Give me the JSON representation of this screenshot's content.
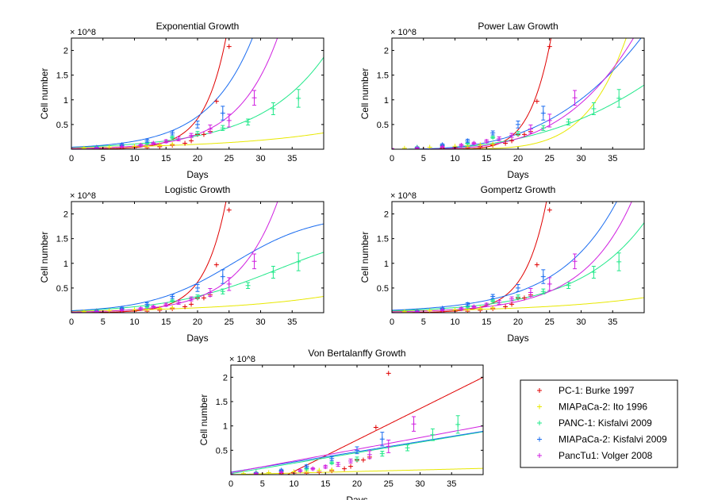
{
  "chart_data": [
    {
      "type": "line",
      "title": "Exponential Growth",
      "xlabel": "Days",
      "ylabel": "Cell number",
      "y_multiplier": "× 10^8",
      "xlim": [
        0,
        40
      ],
      "ylim": [
        0,
        2.25
      ],
      "xticks": [
        0,
        5,
        10,
        15,
        20,
        25,
        30,
        35
      ],
      "yticks": [
        0.5,
        1,
        1.5,
        2
      ],
      "fit_model": "exponential",
      "fits": [
        {
          "series": "PC-1: Burke 1997",
          "y0": 0.002,
          "k": 0.2867
        },
        {
          "series": "MIAPaCa-2: Ito 1996",
          "y0": 0.03,
          "k": 0.06
        },
        {
          "series": "PANC-1: Kisfalvi 2009",
          "y0": 0.04,
          "k": 0.096
        },
        {
          "series": "MIAPaCa-2: Kisfalvi 2009",
          "y0": 0.04,
          "k": 0.1404
        },
        {
          "series": "PancTu1: Volger 2008",
          "y0": 0.013,
          "k": 0.1578
        }
      ]
    },
    {
      "type": "line",
      "title": "Power Law Growth",
      "xlabel": "Days",
      "ylabel": "Cell number",
      "y_multiplier": "× 10^8",
      "xlim": [
        0,
        40
      ],
      "ylim": [
        0,
        2.25
      ],
      "xticks": [
        0,
        5,
        10,
        15,
        20,
        25,
        30,
        35
      ],
      "yticks": [
        0.5,
        1,
        1.5,
        2
      ],
      "fit_model": "power",
      "fits": [
        {
          "series": "PC-1: Burke 1997",
          "a": 2.1,
          "x0": 25,
          "p": 7.5
        },
        {
          "series": "MIAPaCa-2: Ito 1996",
          "a": 2.2,
          "x0": 37,
          "p": 6.0
        },
        {
          "series": "PANC-1: Kisfalvi 2009",
          "a": 1.3,
          "x0": 40,
          "p": 2.6
        },
        {
          "series": "MIAPaCa-2: Kisfalvi 2009",
          "a": 2.25,
          "x0": 39.5,
          "p": 2.9
        },
        {
          "series": "PancTu1: Volger 2008",
          "a": 2.25,
          "x0": 38.3,
          "p": 3.6
        }
      ]
    },
    {
      "type": "line",
      "title": "Logistic Growth",
      "xlabel": "Days",
      "ylabel": "Cell number",
      "y_multiplier": "× 10^8",
      "xlim": [
        0,
        40
      ],
      "ylim": [
        0,
        2.25
      ],
      "xticks": [
        0,
        5,
        10,
        15,
        20,
        25,
        30,
        35
      ],
      "yticks": [
        0.5,
        1,
        1.5,
        2
      ],
      "fit_model": "logistic",
      "fits": [
        {
          "series": "PC-1: Burke 1997",
          "K": 2000,
          "y0": 0.002,
          "r": 0.2867
        },
        {
          "series": "MIAPaCa-2: Ito 1996",
          "K": 100,
          "y0": 0.03,
          "r": 0.06
        },
        {
          "series": "PANC-1: Kisfalvi 2009",
          "K": 1.75,
          "y0": 0.04,
          "r": 0.115
        },
        {
          "series": "MIAPaCa-2: Kisfalvi 2009",
          "K": 2.0,
          "y0": 0.04,
          "r": 0.152
        },
        {
          "series": "PancTu1: Volger 2008",
          "K": 200,
          "y0": 0.013,
          "r": 0.158
        }
      ]
    },
    {
      "type": "line",
      "title": "Gompertz Growth",
      "xlabel": "Days",
      "ylabel": "Cell number",
      "y_multiplier": "× 10^8",
      "xlim": [
        0,
        40
      ],
      "ylim": [
        0,
        2.25
      ],
      "xticks": [
        0,
        5,
        10,
        15,
        20,
        25,
        30,
        35
      ],
      "yticks": [
        0.5,
        1,
        1.5,
        2
      ],
      "fit_model": "exponential",
      "fits": [
        {
          "series": "PC-1: Burke 1997",
          "y0": 0.002,
          "k": 0.2867
        },
        {
          "series": "MIAPaCa-2: Ito 1996",
          "y0": 0.03,
          "k": 0.058
        },
        {
          "series": "PANC-1: Kisfalvi 2009",
          "y0": 0.04,
          "k": 0.0955
        },
        {
          "series": "MIAPaCa-2: Kisfalvi 2009",
          "y0": 0.05,
          "k": 0.1068
        },
        {
          "series": "PancTu1: Volger 2008",
          "y0": 0.018,
          "k": 0.127
        }
      ]
    },
    {
      "type": "line",
      "title": "Von Bertalanffy Growth",
      "xlabel": "Days",
      "ylabel": "Cell number",
      "y_multiplier": "× 10^8",
      "xlim": [
        0,
        40
      ],
      "ylim": [
        0,
        2.25
      ],
      "xticks": [
        0,
        5,
        10,
        15,
        20,
        25,
        30,
        35
      ],
      "yticks": [
        0.5,
        1,
        1.5,
        2
      ],
      "fit_model": "linear",
      "fits": [
        {
          "series": "PC-1: Burke 1997",
          "a": -0.58,
          "b": 0.0645
        },
        {
          "series": "MIAPaCa-2: Ito 1996",
          "a": 0.0,
          "b": 0.0032
        },
        {
          "series": "PANC-1: Kisfalvi 2009",
          "a": 0.02,
          "b": 0.0215
        },
        {
          "series": "MIAPaCa-2: Kisfalvi 2009",
          "a": 0.05,
          "b": 0.021
        },
        {
          "series": "PancTu1: Volger 2008",
          "a": 0.04,
          "b": 0.024
        }
      ]
    }
  ],
  "series": [
    {
      "name": "PC-1: Burke 1997",
      "color": "#e00000",
      "x": [
        5,
        8,
        10,
        12,
        14,
        16,
        18,
        19,
        20,
        21,
        22,
        23,
        25
      ],
      "y": [
        0.0,
        0.02,
        0.03,
        0.03,
        0.05,
        0.08,
        0.12,
        0.17,
        0.3,
        0.3,
        0.36,
        0.97,
        2.08
      ],
      "err": [
        0,
        0,
        0,
        0,
        0,
        0,
        0,
        0,
        0,
        0,
        0,
        0,
        0
      ]
    },
    {
      "name": "MIAPaCa-2: Ito 1996",
      "color": "#e8e800",
      "x": [
        2,
        4,
        6,
        8,
        10,
        12,
        14,
        16
      ],
      "y": [
        0.02,
        0.03,
        0.04,
        0.05,
        0.06,
        0.07,
        0.09,
        0.1
      ],
      "err": [
        0,
        0,
        0,
        0,
        0,
        0,
        0,
        0
      ]
    },
    {
      "name": "PANC-1: Kisfalvi 2009",
      "color": "#22e88a",
      "x": [
        4,
        8,
        12,
        16,
        20,
        24,
        28,
        32,
        36
      ],
      "y": [
        0.04,
        0.07,
        0.12,
        0.24,
        0.32,
        0.43,
        0.55,
        0.82,
        1.03
      ],
      "err": [
        0.01,
        0.01,
        0.02,
        0.02,
        0.04,
        0.05,
        0.06,
        0.12,
        0.18
      ]
    },
    {
      "name": "MIAPaCa-2: Kisfalvi 2009",
      "color": "#1a6cf0",
      "x": [
        4,
        8,
        12,
        16,
        20,
        24
      ],
      "y": [
        0.03,
        0.09,
        0.17,
        0.33,
        0.5,
        0.73
      ],
      "err": [
        0.01,
        0.02,
        0.03,
        0.04,
        0.07,
        0.14
      ]
    },
    {
      "name": "PancTu1: Volger 2008",
      "color": "#d020e0",
      "x": [
        0,
        4,
        8,
        11,
        13,
        15,
        17,
        19,
        22,
        25,
        29
      ],
      "y": [
        0.01,
        0.02,
        0.05,
        0.08,
        0.12,
        0.16,
        0.21,
        0.28,
        0.41,
        0.58,
        1.04
      ],
      "err": [
        0.005,
        0.01,
        0.01,
        0.02,
        0.02,
        0.03,
        0.04,
        0.04,
        0.08,
        0.13,
        0.15
      ]
    }
  ],
  "legend": {
    "position": "bottom-right",
    "entries": [
      "PC-1: Burke 1997",
      "MIAPaCa-2: Ito 1996",
      "PANC-1: Kisfalvi 2009",
      "MIAPaCa-2: Kisfalvi 2009",
      "PancTu1: Volger 2008"
    ]
  }
}
